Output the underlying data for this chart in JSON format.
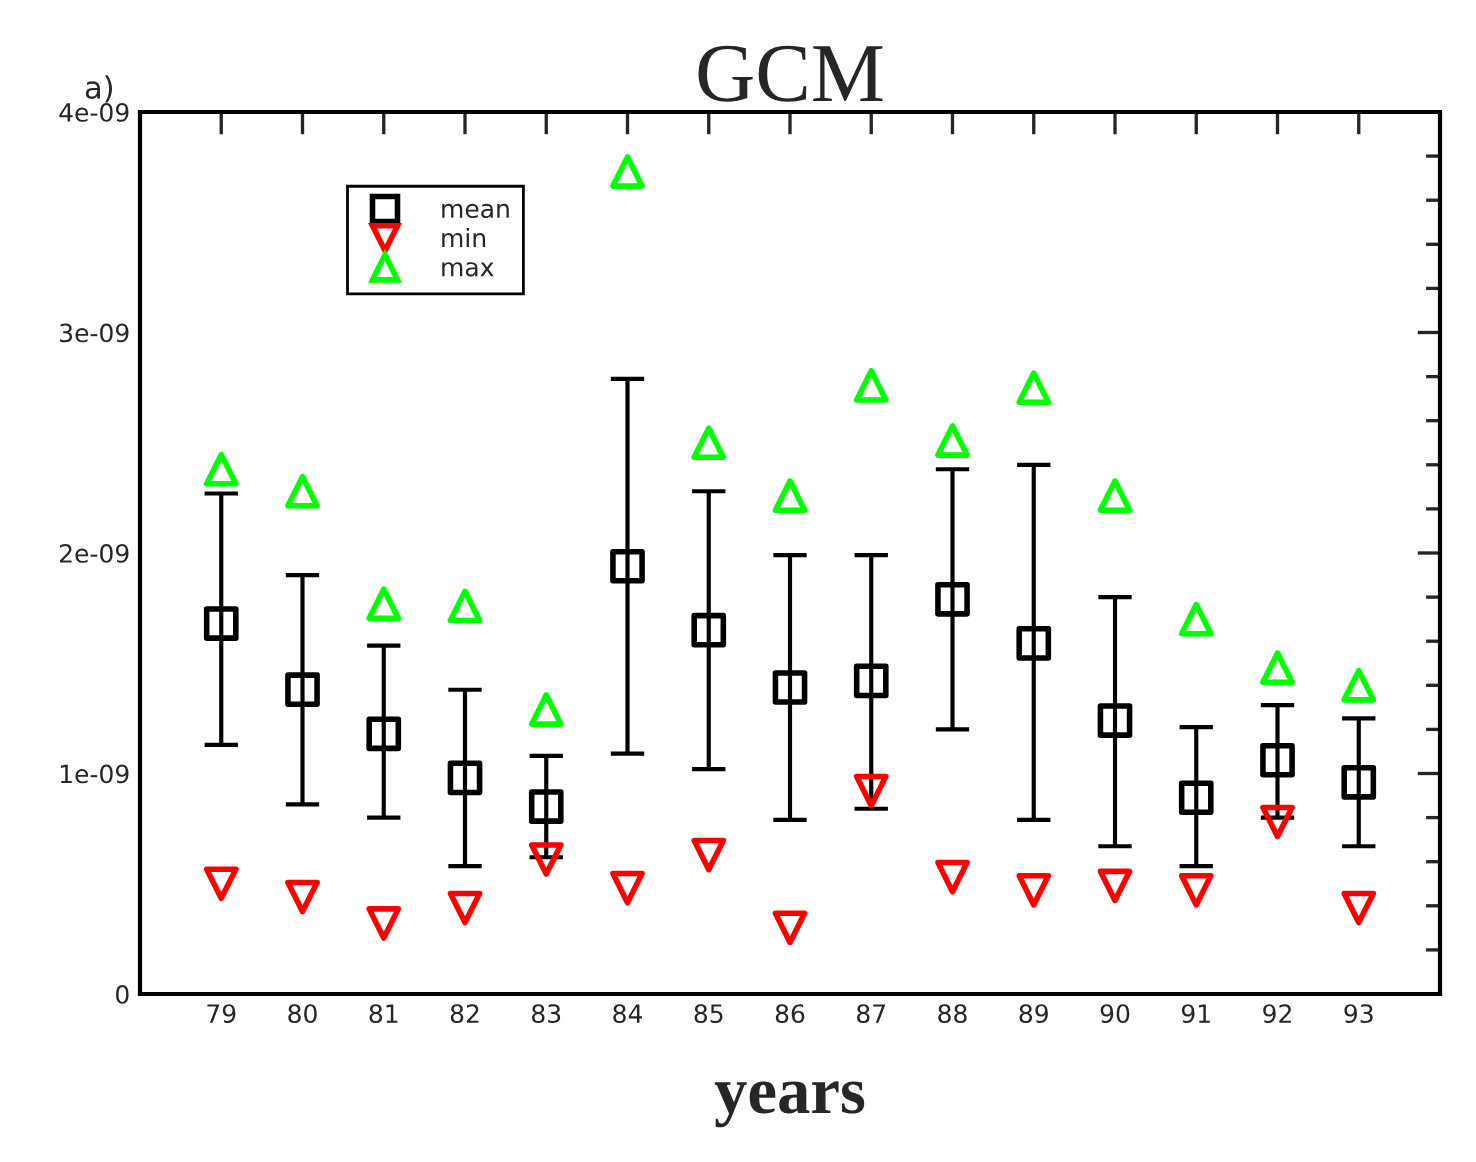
{
  "chart_data": {
    "type": "scatter",
    "title": "GCM",
    "xlabel": "years",
    "annotations": [
      "a)"
    ],
    "x": [
      79,
      80,
      81,
      82,
      83,
      84,
      85,
      86,
      87,
      88,
      89,
      90,
      91,
      92,
      93
    ],
    "series": [
      {
        "name": "mean",
        "color": "#000000",
        "marker": "square",
        "values": [
          1.68e-09,
          1.38e-09,
          1.18e-09,
          9.8e-10,
          8.5e-10,
          1.94e-09,
          1.65e-09,
          1.39e-09,
          1.42e-09,
          1.79e-09,
          1.59e-09,
          1.24e-09,
          8.9e-10,
          1.06e-09,
          9.6e-10
        ],
        "errors": [
          [
            1.13e-09,
            2.27e-09
          ],
          [
            8.6e-10,
            1.9e-09
          ],
          [
            8e-10,
            1.58e-09
          ],
          [
            5.8e-10,
            1.38e-09
          ],
          [
            6.2e-10,
            1.08e-09
          ],
          [
            1.09e-09,
            2.79e-09
          ],
          [
            1.02e-09,
            2.28e-09
          ],
          [
            7.9e-10,
            1.99e-09
          ],
          [
            8.4e-10,
            1.99e-09
          ],
          [
            1.2e-09,
            2.38e-09
          ],
          [
            7.9e-10,
            2.4e-09
          ],
          [
            6.7e-10,
            1.8e-09
          ],
          [
            5.8e-10,
            1.21e-09
          ],
          [
            8e-10,
            1.31e-09
          ],
          [
            6.7e-10,
            1.25e-09
          ]
        ]
      },
      {
        "name": "min",
        "color": "#ff0000",
        "marker": "triangle_down",
        "values": [
          5e-10,
          4.4e-10,
          3.2e-10,
          3.9e-10,
          6.1e-10,
          4.8e-10,
          6.3e-10,
          3e-10,
          9.2e-10,
          5.3e-10,
          4.7e-10,
          4.9e-10,
          4.7e-10,
          7.8e-10,
          3.9e-10
        ]
      },
      {
        "name": "max",
        "color": "#00ff00",
        "marker": "triangle",
        "values": [
          2.38e-09,
          2.28e-09,
          1.77e-09,
          1.76e-09,
          1.29e-09,
          3.73e-09,
          2.5e-09,
          2.26e-09,
          2.76e-09,
          2.51e-09,
          2.75e-09,
          2.26e-09,
          1.7e-09,
          1.48e-09,
          1.4e-09
        ]
      }
    ],
    "xlim": [
      78,
      94
    ],
    "xticks": [
      79,
      80,
      81,
      82,
      83,
      84,
      85,
      86,
      87,
      88,
      89,
      90,
      91,
      92,
      93
    ],
    "ylim": [
      0,
      4e-09
    ],
    "yticks": [
      0,
      {
        "value": 1e-09,
        "label": "1e-09"
      },
      {
        "value": 2e-09,
        "label": "2e-09"
      },
      {
        "value": 3e-09,
        "label": "3e-09"
      },
      {
        "value": 4e-09,
        "label": "4e-09"
      }
    ],
    "legend": "top left",
    "grid": false
  }
}
